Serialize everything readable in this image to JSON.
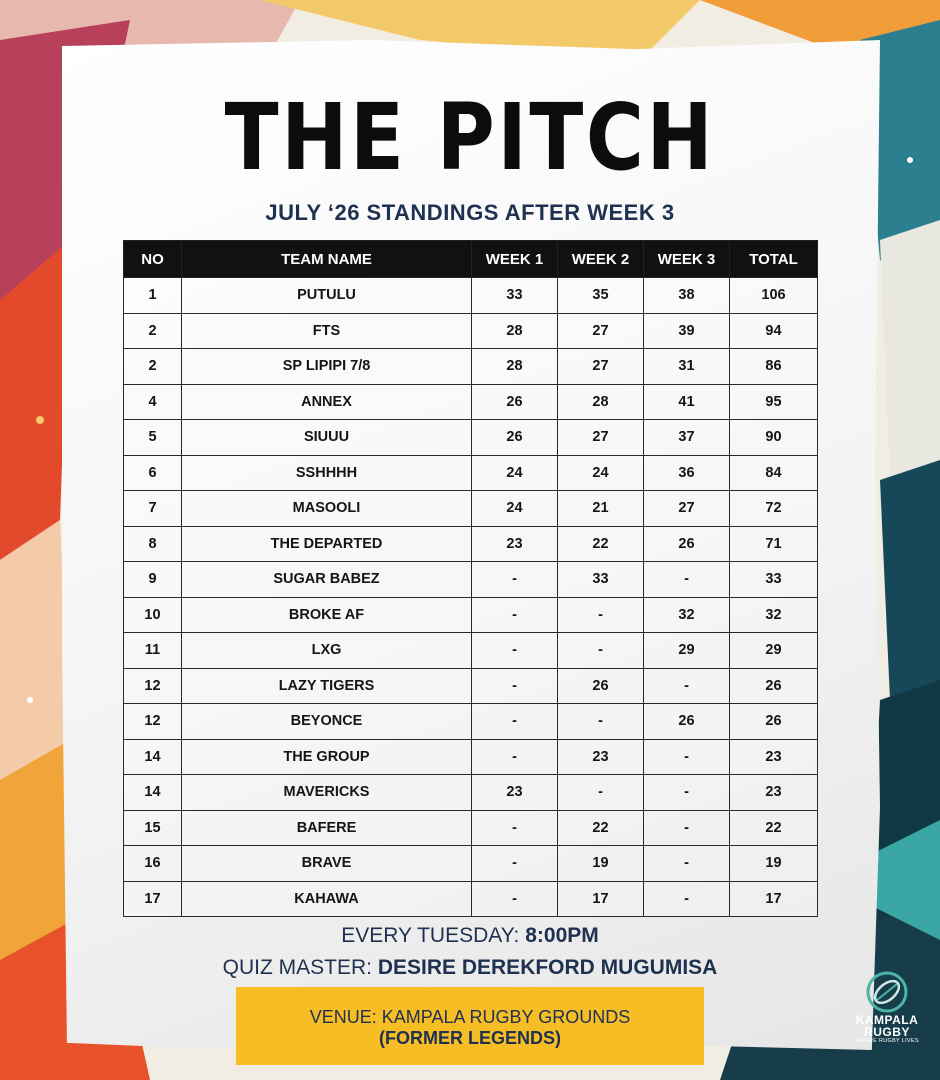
{
  "poster": {
    "title": "THE PITCH",
    "subtitle": "JULY ‘26 STANDINGS AFTER WEEK 3"
  },
  "table": {
    "columns": [
      "NO",
      "TEAM NAME",
      "WEEK 1",
      "WEEK 2",
      "WEEK 3",
      "TOTAL"
    ],
    "rows": [
      {
        "no": "1",
        "team": "PUTULU",
        "w1": "33",
        "w2": "35",
        "w3": "38",
        "total": "106"
      },
      {
        "no": "2",
        "team": "FTS",
        "w1": "28",
        "w2": "27",
        "w3": "39",
        "total": "94"
      },
      {
        "no": "2",
        "team": "SP LIPIPI 7/8",
        "w1": "28",
        "w2": "27",
        "w3": "31",
        "total": "86"
      },
      {
        "no": "4",
        "team": "ANNEX",
        "w1": "26",
        "w2": "28",
        "w3": "41",
        "total": "95"
      },
      {
        "no": "5",
        "team": "SIUUU",
        "w1": "26",
        "w2": "27",
        "w3": "37",
        "total": "90"
      },
      {
        "no": "6",
        "team": "SSHHHH",
        "w1": "24",
        "w2": "24",
        "w3": "36",
        "total": "84"
      },
      {
        "no": "7",
        "team": "MASOOLI",
        "w1": "24",
        "w2": "21",
        "w3": "27",
        "total": "72"
      },
      {
        "no": "8",
        "team": "THE DEPARTED",
        "w1": "23",
        "w2": "22",
        "w3": "26",
        "total": "71"
      },
      {
        "no": "9",
        "team": "SUGAR BABEZ",
        "w1": "-",
        "w2": "33",
        "w3": "-",
        "total": "33"
      },
      {
        "no": "10",
        "team": "BROKE AF",
        "w1": "-",
        "w2": "-",
        "w3": "32",
        "total": "32"
      },
      {
        "no": "11",
        "team": "LXG",
        "w1": "-",
        "w2": "-",
        "w3": "29",
        "total": "29"
      },
      {
        "no": "12",
        "team": "LAZY TIGERS",
        "w1": "-",
        "w2": "26",
        "w3": "-",
        "total": "26"
      },
      {
        "no": "12",
        "team": "BEYONCE",
        "w1": "-",
        "w2": "-",
        "w3": "26",
        "total": "26"
      },
      {
        "no": "14",
        "team": "THE GROUP",
        "w1": "-",
        "w2": "23",
        "w3": "-",
        "total": "23"
      },
      {
        "no": "14",
        "team": "MAVERICKS",
        "w1": "23",
        "w2": "-",
        "w3": "-",
        "total": "23"
      },
      {
        "no": "15",
        "team": "BAFERE",
        "w1": "-",
        "w2": "22",
        "w3": "-",
        "total": "22"
      },
      {
        "no": "16",
        "team": "BRAVE",
        "w1": "-",
        "w2": "19",
        "w3": "-",
        "total": "19"
      },
      {
        "no": "17",
        "team": "KAHAWA",
        "w1": "-",
        "w2": "17",
        "w3": "-",
        "total": "17"
      }
    ]
  },
  "schedule": {
    "day_label": "EVERY TUESDAY:",
    "time": "8:00PM",
    "quiz_master_label": "QUIZ MASTER:",
    "quiz_master_name": "DESIRE DEREKFORD MUGUMISA"
  },
  "venue": {
    "line1": "VENUE: KAMPALA RUGBY GROUNDS",
    "line2": "(FORMER LEGENDS)"
  },
  "logo": {
    "name_line1": "KAMPALA",
    "name_line2": "RUGBY",
    "tagline": "WHERE RUGBY LIVES"
  },
  "colors": {
    "header_bg": "#111111",
    "subtitle_text": "#1f3150",
    "venue_bg": "#f6bd25",
    "logo_accent": "#4db3a6"
  }
}
